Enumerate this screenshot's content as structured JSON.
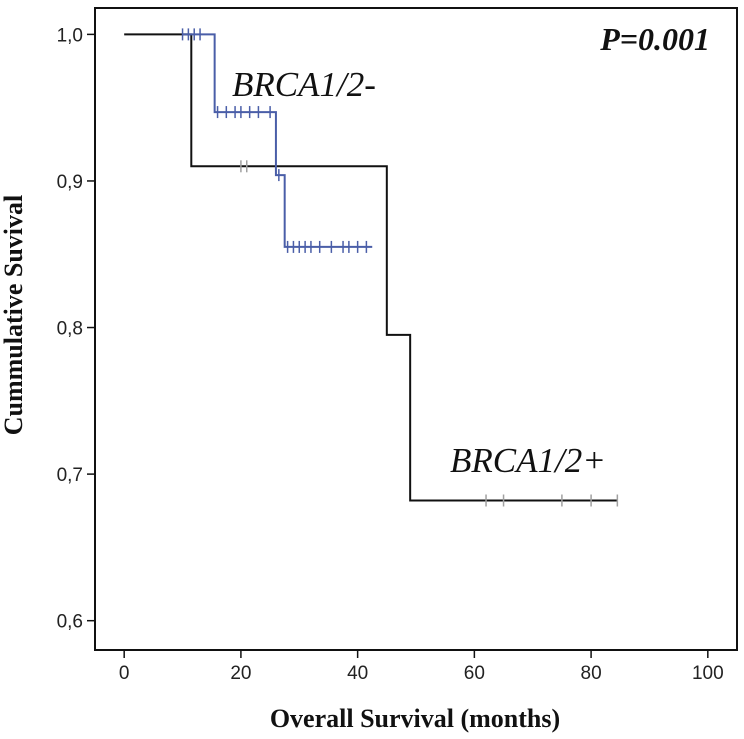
{
  "chart_data": {
    "type": "line",
    "subtype": "kaplan-meier step",
    "xlabel": "Overall Survival (months)",
    "ylabel": "Cummulative Suvival",
    "xlim": [
      -5,
      105
    ],
    "ylim": [
      0.58,
      1.018
    ],
    "x_ticks": [
      0,
      20,
      40,
      60,
      80,
      100
    ],
    "x_tick_labels": [
      "0",
      "20",
      "40",
      "60",
      "80",
      "100"
    ],
    "y_ticks": [
      1.0,
      0.9,
      0.8,
      0.7,
      0.6
    ],
    "y_tick_labels": [
      "1,0",
      "0,9",
      "0,8",
      "0,7",
      "0,6"
    ],
    "grid": false,
    "annotation": "P=0.001",
    "series": [
      {
        "name": "BRCA1/2+",
        "color": "#111111",
        "censor_color": "#a0a0a0",
        "steps": [
          [
            0,
            1.0
          ],
          [
            11.5,
            0.91
          ],
          [
            45,
            0.795
          ],
          [
            49,
            0.682
          ],
          [
            84.5,
            0.682
          ]
        ],
        "censored": [
          [
            20,
            0.91
          ],
          [
            21,
            0.91
          ],
          [
            62,
            0.682
          ],
          [
            65,
            0.682
          ],
          [
            75,
            0.682
          ],
          [
            80,
            0.682
          ],
          [
            84.5,
            0.682
          ]
        ]
      },
      {
        "name": "BRCA1/2-",
        "color": "#4a5ea8",
        "censor_color": "#4a5ea8",
        "steps": [
          [
            10,
            1.0
          ],
          [
            15.5,
            0.947
          ],
          [
            26,
            0.904
          ],
          [
            27.5,
            0.855
          ],
          [
            42.5,
            0.855
          ]
        ],
        "censored": [
          [
            10,
            1.0
          ],
          [
            11,
            1.0
          ],
          [
            12,
            1.0
          ],
          [
            13,
            1.0
          ],
          [
            16,
            0.947
          ],
          [
            17.5,
            0.947
          ],
          [
            19,
            0.947
          ],
          [
            20,
            0.947
          ],
          [
            21.5,
            0.947
          ],
          [
            23,
            0.947
          ],
          [
            25,
            0.947
          ],
          [
            26.5,
            0.904
          ],
          [
            28,
            0.855
          ],
          [
            29,
            0.855
          ],
          [
            30,
            0.855
          ],
          [
            31,
            0.855
          ],
          [
            32,
            0.855
          ],
          [
            33.5,
            0.855
          ],
          [
            35.5,
            0.855
          ],
          [
            37.5,
            0.855
          ],
          [
            38.5,
            0.855
          ],
          [
            40,
            0.855
          ],
          [
            41.5,
            0.855
          ]
        ]
      }
    ]
  }
}
